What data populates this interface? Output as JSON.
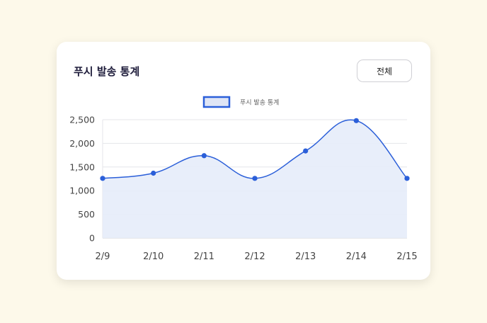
{
  "card": {
    "title": "푸시 발송 통계",
    "filter_button": "전체"
  },
  "chart_data": {
    "type": "area",
    "title": "",
    "xlabel": "",
    "ylabel": "",
    "categories": [
      "2/9",
      "2/10",
      "2/11",
      "2/12",
      "2/13",
      "2/14",
      "2/15"
    ],
    "series": [
      {
        "name": "푸시 발송 통계",
        "values": [
          1260,
          1370,
          1740,
          1260,
          1840,
          2480,
          1260
        ],
        "color": "#2b5fd9",
        "fill": "#e6ecfa"
      }
    ],
    "yticks": [
      "0",
      "500",
      "1,000",
      "1,500",
      "2,000",
      "2,500"
    ],
    "ylim": [
      0,
      2500
    ],
    "grid": true,
    "legend": "top-center"
  }
}
